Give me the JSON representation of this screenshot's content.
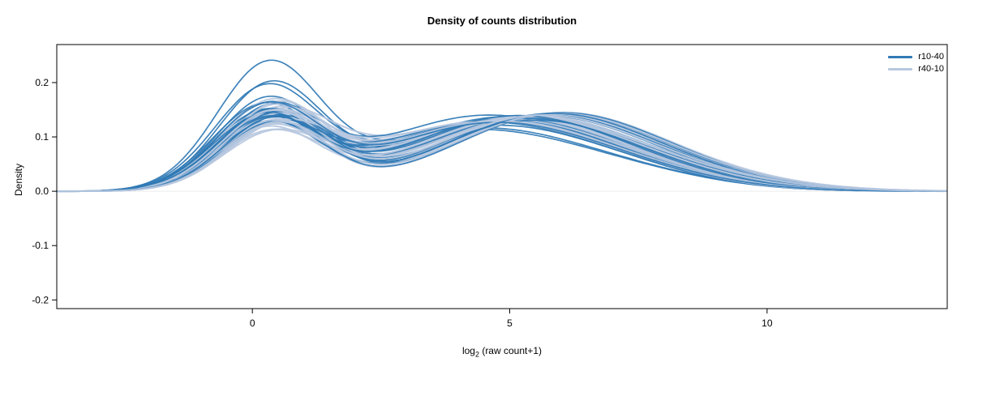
{
  "figure": {
    "xlabel_parts": {
      "prefix": "log",
      "sub": "2",
      "suffix": " (raw count+1)"
    }
  },
  "chart_data": {
    "type": "line",
    "title": "Density of counts distribution",
    "xlabel": "log2 (raw count+1)",
    "ylabel": "Density",
    "xlim": [
      -3.8,
      13.5
    ],
    "ylim": [
      -0.216,
      0.27
    ],
    "xticks": [
      0,
      5,
      10
    ],
    "yticks": [
      -0.2,
      -0.1,
      0.0,
      0.1,
      0.2
    ],
    "grid": false,
    "legend_position": "top-right",
    "description": "Overlaid kernel density estimates of log2(raw count+1) for many samples in two condition groups; bimodal shape with a sharp low-count peak near x=0.3 (density 0.10-0.235) and a broad hump near x=4-6 (density 0.10-0.15), tailing to ~0 by x=13.",
    "curve_model": {
      "form": "sum of three gaussian bumps per curve; params per curve are [c1,h1,c2,h2,c3,h3]",
      "widths": [
        1.0,
        2.0,
        1.9
      ]
    },
    "groups": [
      {
        "name": "r10-40",
        "color": "#3079b5",
        "stroke_width": 1.7,
        "curves": [
          [
            0.3,
            0.225,
            4.2,
            0.105,
            7.0,
            0.03
          ],
          [
            0.35,
            0.19,
            4.5,
            0.11,
            7.2,
            0.028
          ],
          [
            0.25,
            0.18,
            4.0,
            0.1,
            6.8,
            0.035
          ],
          [
            0.3,
            0.165,
            4.8,
            0.12,
            7.5,
            0.03
          ],
          [
            0.4,
            0.155,
            5.2,
            0.125,
            7.8,
            0.025
          ],
          [
            0.2,
            0.15,
            4.4,
            0.115,
            7.0,
            0.04
          ],
          [
            0.35,
            0.148,
            5.5,
            0.13,
            8.0,
            0.02
          ],
          [
            0.28,
            0.145,
            4.1,
            0.118,
            6.6,
            0.045
          ],
          [
            0.45,
            0.142,
            5.8,
            0.135,
            8.3,
            0.018
          ],
          [
            0.22,
            0.14,
            4.6,
            0.122,
            7.1,
            0.032
          ],
          [
            0.38,
            0.138,
            5.0,
            0.128,
            7.6,
            0.026
          ],
          [
            0.3,
            0.136,
            4.3,
            0.112,
            6.9,
            0.038
          ],
          [
            0.5,
            0.134,
            5.4,
            0.126,
            8.1,
            0.022
          ],
          [
            0.26,
            0.132,
            4.7,
            0.119,
            7.3,
            0.03
          ],
          [
            0.42,
            0.13,
            5.1,
            0.124,
            7.7,
            0.024
          ],
          [
            0.18,
            0.128,
            4.2,
            0.108,
            6.7,
            0.042
          ],
          [
            0.33,
            0.126,
            5.6,
            0.132,
            8.2,
            0.019
          ],
          [
            0.29,
            0.124,
            4.5,
            0.116,
            7.0,
            0.034
          ],
          [
            0.47,
            0.122,
            5.3,
            0.121,
            7.9,
            0.023
          ],
          [
            0.24,
            0.12,
            4.0,
            0.104,
            6.5,
            0.046
          ],
          [
            0.36,
            0.118,
            4.9,
            0.127,
            7.4,
            0.027
          ],
          [
            0.31,
            0.143,
            5.9,
            0.138,
            8.5,
            0.016
          ],
          [
            0.27,
            0.15,
            4.35,
            0.11,
            6.9,
            0.036
          ],
          [
            0.44,
            0.133,
            5.65,
            0.133,
            8.0,
            0.021
          ]
        ]
      },
      {
        "name": "r40-10",
        "color": "#b7c8e0",
        "stroke_width": 2.1,
        "curves": [
          [
            0.4,
            0.1,
            4.6,
            0.12,
            7.4,
            0.035
          ],
          [
            0.35,
            0.105,
            5.0,
            0.125,
            7.8,
            0.03
          ],
          [
            0.5,
            0.11,
            4.3,
            0.115,
            7.0,
            0.04
          ],
          [
            0.3,
            0.115,
            5.4,
            0.13,
            8.1,
            0.025
          ],
          [
            0.45,
            0.12,
            4.8,
            0.122,
            7.5,
            0.032
          ],
          [
            0.38,
            0.125,
            5.7,
            0.135,
            8.4,
            0.02
          ],
          [
            0.55,
            0.13,
            4.1,
            0.11,
            6.8,
            0.045
          ],
          [
            0.32,
            0.135,
            5.2,
            0.128,
            7.9,
            0.028
          ],
          [
            0.48,
            0.14,
            4.5,
            0.118,
            7.2,
            0.036
          ],
          [
            0.28,
            0.145,
            5.9,
            0.138,
            8.6,
            0.018
          ],
          [
            0.42,
            0.15,
            4.9,
            0.124,
            7.6,
            0.03
          ],
          [
            0.36,
            0.155,
            4.4,
            0.114,
            7.1,
            0.038
          ],
          [
            0.52,
            0.16,
            5.5,
            0.132,
            8.2,
            0.022
          ],
          [
            0.34,
            0.112,
            4.7,
            0.121,
            7.3,
            0.033
          ],
          [
            0.46,
            0.118,
            5.1,
            0.126,
            7.7,
            0.029
          ],
          [
            0.4,
            0.124,
            4.2,
            0.112,
            6.9,
            0.042
          ],
          [
            0.3,
            0.131,
            5.6,
            0.134,
            8.3,
            0.021
          ],
          [
            0.44,
            0.137,
            4.6,
            0.117,
            7.2,
            0.034
          ],
          [
            0.37,
            0.143,
            5.3,
            0.129,
            8.0,
            0.024
          ],
          [
            0.49,
            0.108,
            4.0,
            0.106,
            6.6,
            0.048
          ],
          [
            0.33,
            0.116,
            5.0,
            0.123,
            7.5,
            0.031
          ],
          [
            0.41,
            0.128,
            5.8,
            0.136,
            8.5,
            0.019
          ],
          [
            0.35,
            0.134,
            4.35,
            0.113,
            7.0,
            0.037
          ],
          [
            0.47,
            0.122,
            5.45,
            0.131,
            8.1,
            0.023
          ]
        ]
      }
    ]
  }
}
